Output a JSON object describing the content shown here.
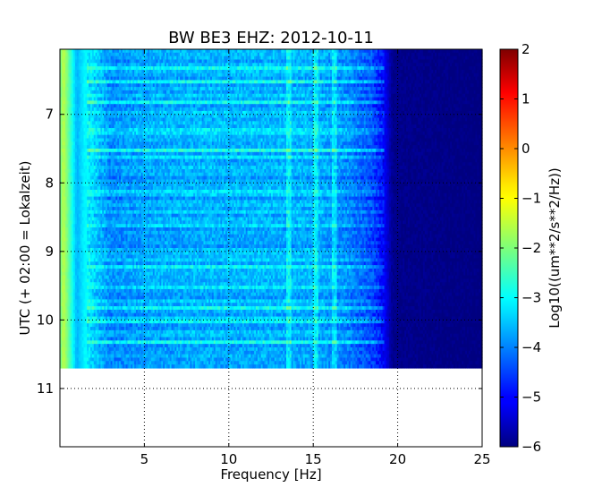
{
  "chart_data": {
    "type": "heatmap",
    "title": "BW BE3 EHZ: 2012-10-11",
    "xlabel": "Frequency [Hz]",
    "ylabel": "UTC (+ 02:00 = Lokalzeit)",
    "xlim": [
      0,
      25
    ],
    "ylim": [
      11.85,
      6.05
    ],
    "xticks": [
      5,
      10,
      15,
      20,
      25
    ],
    "yticks": [
      7,
      8,
      9,
      10,
      11
    ],
    "grid": true,
    "colormap": "jet",
    "data_extent": {
      "x": [
        0,
        25
      ],
      "y": [
        6.05,
        10.72
      ]
    },
    "colorbar": {
      "label": "Log10((um**2/s**2/Hz))",
      "range": [
        -6,
        2
      ],
      "ticks": [
        2,
        1,
        0,
        -1,
        -2,
        -3,
        -4,
        -5,
        -6
      ]
    },
    "spectral_profile": {
      "frequency_hz": [
        0,
        0.2,
        0.5,
        1.0,
        1.5,
        3,
        5,
        8,
        10,
        13,
        15,
        17,
        18.5,
        19.2,
        19.7,
        25
      ],
      "log10_power": [
        -2.2,
        -1.5,
        -2.2,
        -3.6,
        -3.0,
        -3.9,
        -3.7,
        -3.6,
        -3.6,
        -3.6,
        -3.6,
        -3.9,
        -4.4,
        -5.0,
        -5.9,
        -6.0
      ]
    },
    "persistent_lines_hz": [
      13.5,
      15.1,
      16.2
    ],
    "bright_bands_utc": [
      6.3,
      6.5,
      6.8,
      7.5,
      8.1,
      8.6,
      9.2,
      9.5,
      9.8,
      10.0,
      10.3
    ]
  }
}
